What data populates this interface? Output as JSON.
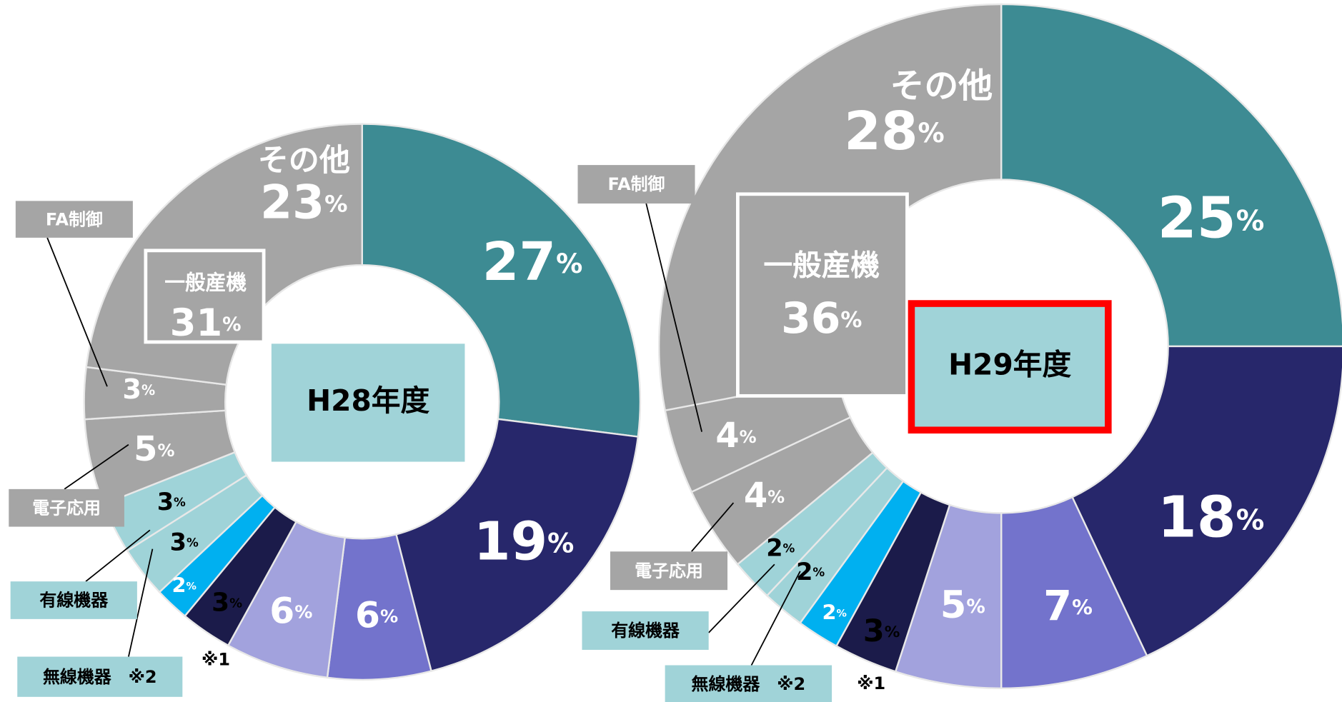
{
  "chart_data": [
    {
      "type": "donut",
      "title": "H28年度",
      "categories": [
        null,
        null,
        null,
        null,
        "※1",
        null,
        "無線機器　※2",
        "有線機器",
        "電子応用",
        "FA制御",
        "その他"
      ],
      "values": [
        27,
        19,
        6,
        6,
        3,
        2,
        3,
        3,
        5,
        3,
        23
      ],
      "value_unit": "%",
      "colors": [
        "#3d8b93",
        "#27276b",
        "#7373cc",
        "#a2a2dd",
        "#1b1b4a",
        "#00b0f0",
        "#9fd3d8",
        "#9fd3d8",
        "#a5a5a5",
        "#a5a5a5",
        "#a5a5a5"
      ],
      "group": {
        "label": "一般産機",
        "value": 31
      },
      "highlight": false
    },
    {
      "type": "donut",
      "title": "H29年度",
      "categories": [
        null,
        null,
        null,
        null,
        "※1",
        null,
        "無線機器　※2",
        "有線機器",
        "電子応用",
        "FA制御",
        "その他"
      ],
      "values": [
        25,
        18,
        7,
        5,
        3,
        2,
        2,
        2,
        4,
        4,
        28
      ],
      "value_unit": "%",
      "colors": [
        "#3d8b93",
        "#27276b",
        "#7373cc",
        "#a2a2dd",
        "#1b1b4a",
        "#00b0f0",
        "#9fd3d8",
        "#9fd3d8",
        "#a5a5a5",
        "#a5a5a5",
        "#a5a5a5"
      ],
      "group": {
        "label": "一般産機",
        "value": 36
      },
      "highlight": true
    }
  ]
}
